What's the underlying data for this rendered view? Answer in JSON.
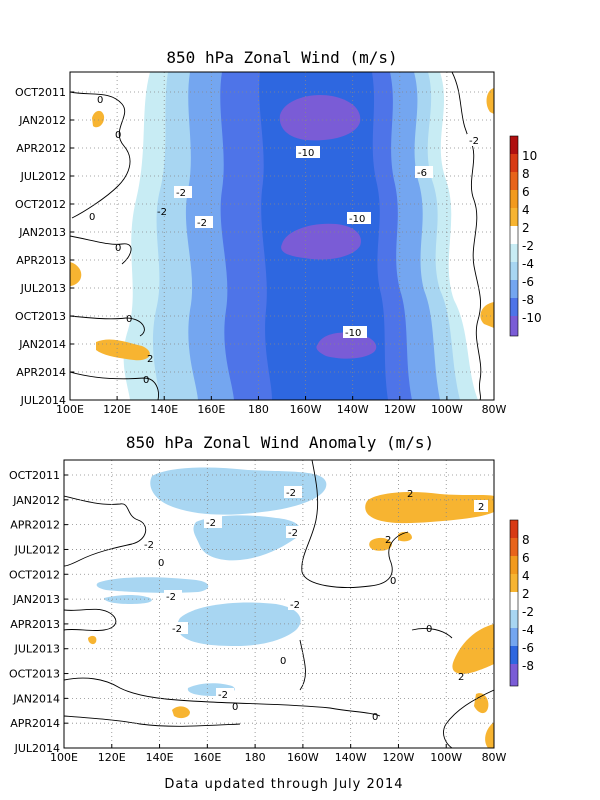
{
  "footer": "Data updated through July 2014",
  "colors": {
    "neg10": "#7a5cd6",
    "neg8": "#4e74e8",
    "neg6": "#2e67e0",
    "neg4": "#74a6f0",
    "neg2": "#a8d6f2",
    "neg0": "#c8ecf4",
    "pos2": "#f7b431",
    "pos4": "#f29a1d",
    "pos6": "#e8641a",
    "pos8": "#d83a14",
    "pos10": "#b01010"
  },
  "chart_data": [
    {
      "type": "heatmap",
      "title": "850 hPa Zonal Wind (m/s)",
      "x_ticks": [
        "100E",
        "120E",
        "140E",
        "160E",
        "180",
        "160W",
        "140W",
        "120W",
        "100W",
        "80W"
      ],
      "y_ticks": [
        "OCT2011",
        "JAN2012",
        "APR2012",
        "JUL2012",
        "OCT2012",
        "JAN2013",
        "APR2013",
        "JUL2013",
        "OCT2013",
        "JAN2014",
        "APR2014",
        "JUL2014"
      ],
      "levels": [
        -10,
        -8,
        -6,
        -4,
        -2,
        2,
        4,
        6,
        8,
        10
      ],
      "colorbar_labels": [
        "10",
        "8",
        "6",
        "4",
        "2",
        "-2",
        "-4",
        "-6",
        "-8",
        "-10"
      ],
      "contour_labels": [
        "0",
        "0",
        "0",
        "0",
        "0",
        "0",
        "-2",
        "-2",
        "-2",
        "-2",
        "-6",
        "-10",
        "-10",
        "-10",
        "2"
      ],
      "summary_values": {
        "min": -12,
        "max": 4
      }
    },
    {
      "type": "heatmap",
      "title": "850 hPa Zonal Wind Anomaly (m/s)",
      "x_ticks": [
        "100E",
        "120E",
        "140E",
        "160E",
        "180",
        "160W",
        "140W",
        "120W",
        "100W",
        "80W"
      ],
      "y_ticks": [
        "OCT2011",
        "JAN2012",
        "APR2012",
        "JUL2012",
        "OCT2012",
        "JAN2013",
        "APR2013",
        "JUL2013",
        "OCT2013",
        "JAN2014",
        "APR2014",
        "JUL2014"
      ],
      "levels": [
        -8,
        -6,
        -4,
        -2,
        2,
        4,
        6,
        8
      ],
      "colorbar_labels": [
        "8",
        "6",
        "4",
        "2",
        "-2",
        "-4",
        "-6",
        "-8"
      ],
      "contour_labels": [
        "-2",
        "-2",
        "-2",
        "-2",
        "-2",
        "-2",
        "-2",
        "-2",
        "2",
        "2",
        "2",
        "2",
        "0",
        "0",
        "0",
        "0",
        "0",
        "0"
      ],
      "summary_values": {
        "min": -4,
        "max": 4
      }
    }
  ]
}
